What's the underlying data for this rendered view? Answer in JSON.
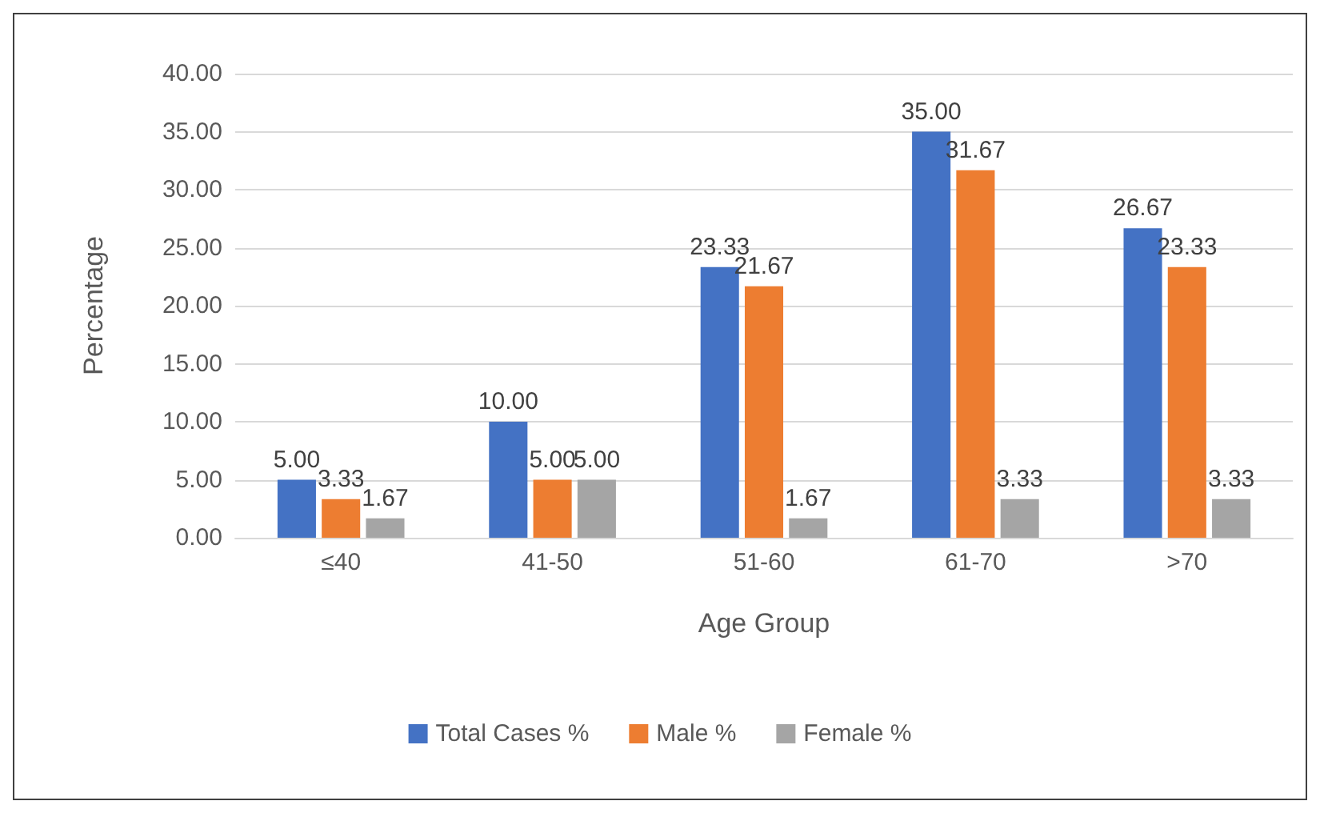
{
  "chart_data": {
    "type": "bar",
    "xlabel": "Age Group",
    "ylabel": "Percentage",
    "categories": [
      "≤40",
      "41-50",
      "51-60",
      "61-70",
      ">70"
    ],
    "series": [
      {
        "name": "Total Cases %",
        "color": "#4472c4",
        "values": [
          5,
          10,
          23.33,
          35,
          26.67
        ],
        "value_labels": [
          "5.00",
          "10.00",
          "23.33",
          "35.00",
          "26.67"
        ]
      },
      {
        "name": "Male %",
        "color": "#ed7d31",
        "values": [
          3.33,
          5,
          21.67,
          31.67,
          23.33
        ],
        "value_labels": [
          "3.33",
          "5.00",
          "21.67",
          "31.67",
          "23.33"
        ]
      },
      {
        "name": "Female %",
        "color": "#a5a5a5",
        "values": [
          1.67,
          5,
          1.67,
          3.33,
          3.33
        ],
        "value_labels": [
          "1.67",
          "5.00",
          "1.67",
          "3.33",
          "3.33"
        ]
      }
    ],
    "ylim": [
      0,
      40
    ],
    "yticks": [
      {
        "value": 0,
        "label": "0.00"
      },
      {
        "value": 5,
        "label": "5.00"
      },
      {
        "value": 10,
        "label": "10.00"
      },
      {
        "value": 15,
        "label": "15.00"
      },
      {
        "value": 20,
        "label": "20.00"
      },
      {
        "value": 25,
        "label": "25.00"
      },
      {
        "value": 30,
        "label": "30.00"
      },
      {
        "value": 35,
        "label": "35.00"
      },
      {
        "value": 40,
        "label": "40.00"
      }
    ],
    "grid": "y",
    "legend": "bottom"
  }
}
